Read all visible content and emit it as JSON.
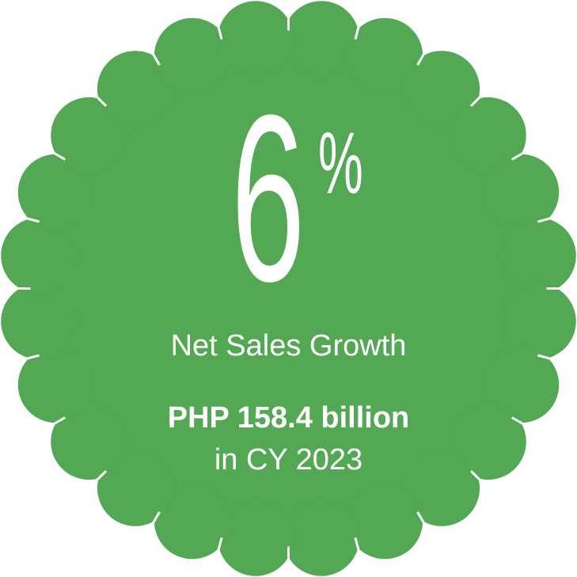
{
  "badge": {
    "fill_color": "#52a853",
    "text_color": "#ffffff",
    "shape": "scalloped-circle"
  },
  "stat": {
    "value": "6",
    "unit": "%",
    "label": "Net Sales Growth",
    "amount": "PHP 158.4 billion",
    "period": "in CY 2023"
  }
}
